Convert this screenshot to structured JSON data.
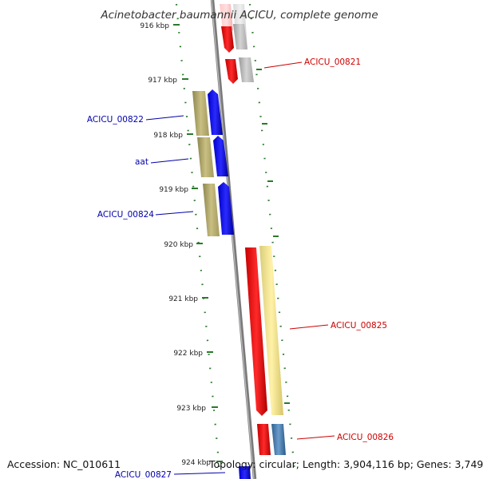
{
  "title": "Acinetobacter baumannii ACICU, complete genome",
  "footer": {
    "accession": "Accession: NC_010611",
    "topology": "Topology: circular; Length: 3,904,116 bp; Genes: 3,749"
  },
  "colors": {
    "forward_label": "#cc0000",
    "reverse_label": "#0000aa",
    "backbone": "#808080",
    "tick": "#2a7a2a",
    "cds_forward": "#ff0000",
    "cds_reverse": "#0000ff",
    "gene_olive": "#b3a96a",
    "gene_yellow": "#f2e58f",
    "gene_gray": "#b8b8b8",
    "gene_steelblue": "#4a7fb0"
  },
  "ruler": {
    "unit": "kbp",
    "ticks": [
      "916 kbp",
      "917 kbp",
      "918 kbp",
      "919 kbp",
      "920 kbp",
      "921 kbp",
      "922 kbp",
      "923 kbp",
      "924 kbp"
    ]
  },
  "gene_labels": [
    {
      "name": "ACICU_00821",
      "strand": "forward"
    },
    {
      "name": "ACICU_00822",
      "strand": "reverse"
    },
    {
      "name": "aat",
      "strand": "reverse"
    },
    {
      "name": "ACICU_00824",
      "strand": "reverse"
    },
    {
      "name": "ACICU_00825",
      "strand": "forward"
    },
    {
      "name": "ACICU_00826",
      "strand": "forward"
    },
    {
      "name": "ACICU_00827",
      "strand": "reverse"
    }
  ]
}
